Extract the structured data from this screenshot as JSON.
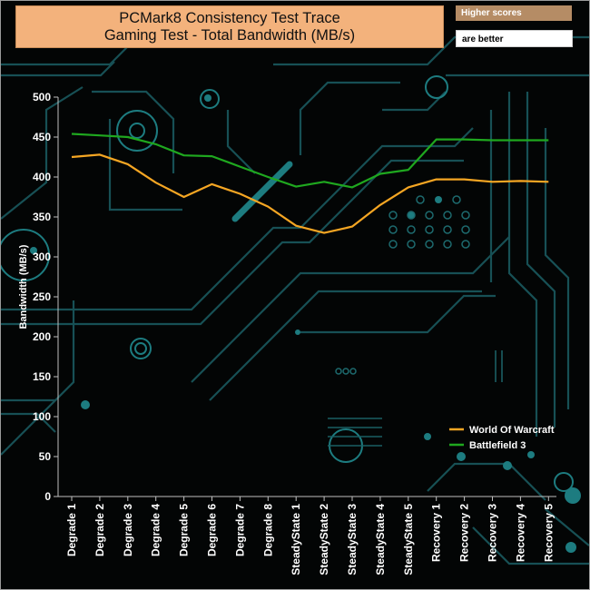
{
  "chart_data": {
    "type": "line",
    "title": "PCMark8 Consistency Test Trace",
    "subtitle": "Gaming Test - Total Bandwidth (MB/s)",
    "ylabel": "Bandwidth (MB/s)",
    "xlabel": "",
    "ylim": [
      0,
      500
    ],
    "ytick_step": 50,
    "yticks": [
      "0",
      "50",
      "100",
      "150",
      "200",
      "250",
      "300",
      "350",
      "400",
      "450",
      "500"
    ],
    "categories": [
      "Degrade 1",
      "Degrade 2",
      "Degrade 3",
      "Degrade 4",
      "Degrade 5",
      "Degrade 6",
      "Degrade 7",
      "Degrade 8",
      "SteadyState 1",
      "SteadyState 2",
      "SteadyState 3",
      "SteadyState 4",
      "SteadyState 5",
      "Recovery 1",
      "Recovery 2",
      "Recovery 3",
      "Recovery 4",
      "Recovery 5"
    ],
    "series": [
      {
        "name": "World Of Warcraft",
        "color": "#f5a623",
        "values": [
          425,
          428,
          416,
          393,
          375,
          391,
          379,
          363,
          339,
          330,
          338,
          365,
          387,
          397,
          397,
          394,
          395,
          394
        ]
      },
      {
        "name": "Battlefield 3",
        "color": "#1fa81f",
        "values": [
          454,
          452,
          450,
          441,
          427,
          426,
          413,
          400,
          388,
          394,
          387,
          404,
          409,
          447,
          447,
          446,
          446,
          446
        ]
      }
    ],
    "legend_position": "bottom-right",
    "grid": false
  },
  "badges": {
    "higher": "Higher scores",
    "better": "are better"
  },
  "colors": {
    "background": "#030505",
    "circuit": "#1d6a6e",
    "title_bg": "#f3b27c"
  }
}
